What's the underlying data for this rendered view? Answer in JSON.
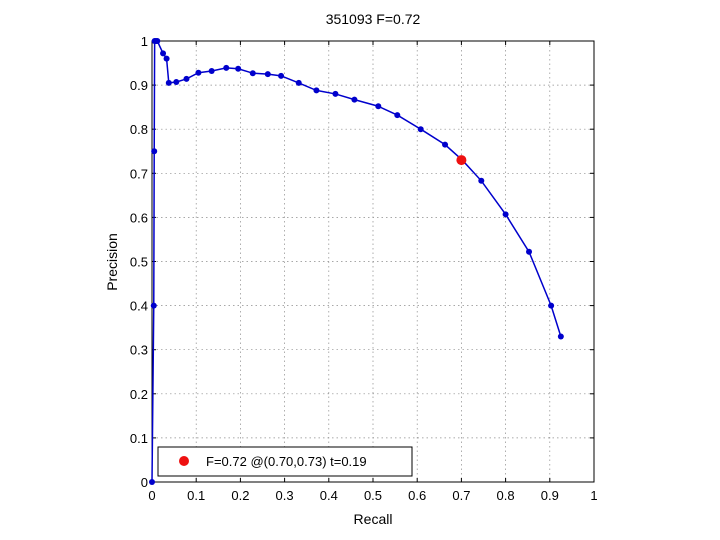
{
  "chart_data": {
    "type": "line",
    "title": "351093 F=0.72",
    "xlabel": "Recall",
    "ylabel": "Precision",
    "xlim": [
      0,
      1
    ],
    "ylim": [
      0,
      1
    ],
    "x_ticks": [
      "0",
      "0.1",
      "0.2",
      "0.3",
      "0.4",
      "0.5",
      "0.6",
      "0.7",
      "0.8",
      "0.9",
      "1"
    ],
    "y_ticks": [
      "0",
      "0.1",
      "0.2",
      "0.3",
      "0.4",
      "0.5",
      "0.6",
      "0.7",
      "0.8",
      "0.9",
      "1"
    ],
    "grid": true,
    "legend_position": "bottom-left",
    "series": [
      {
        "color": "#0000cc",
        "x": [
          0.0,
          0.004,
          0.005,
          0.006,
          0.009,
          0.012,
          0.025,
          0.033,
          0.038,
          0.055,
          0.078,
          0.105,
          0.135,
          0.168,
          0.195,
          0.228,
          0.262,
          0.292,
          0.332,
          0.372,
          0.415,
          0.458,
          0.512,
          0.555,
          0.608,
          0.663,
          0.702,
          0.745,
          0.8,
          0.853,
          0.903,
          0.925
        ],
        "y": [
          0.0,
          0.4,
          0.75,
          1.0,
          1.0,
          1.0,
          0.972,
          0.96,
          0.905,
          0.907,
          0.914,
          0.928,
          0.932,
          0.939,
          0.937,
          0.927,
          0.925,
          0.921,
          0.905,
          0.888,
          0.88,
          0.867,
          0.852,
          0.832,
          0.8,
          0.765,
          0.73,
          0.683,
          0.607,
          0.522,
          0.4,
          0.33
        ]
      }
    ],
    "highlight": {
      "x": 0.7,
      "y": 0.73,
      "color": "#ee1111"
    },
    "legend": "F=0.72 @(0.70,0.73) t=0.19"
  }
}
